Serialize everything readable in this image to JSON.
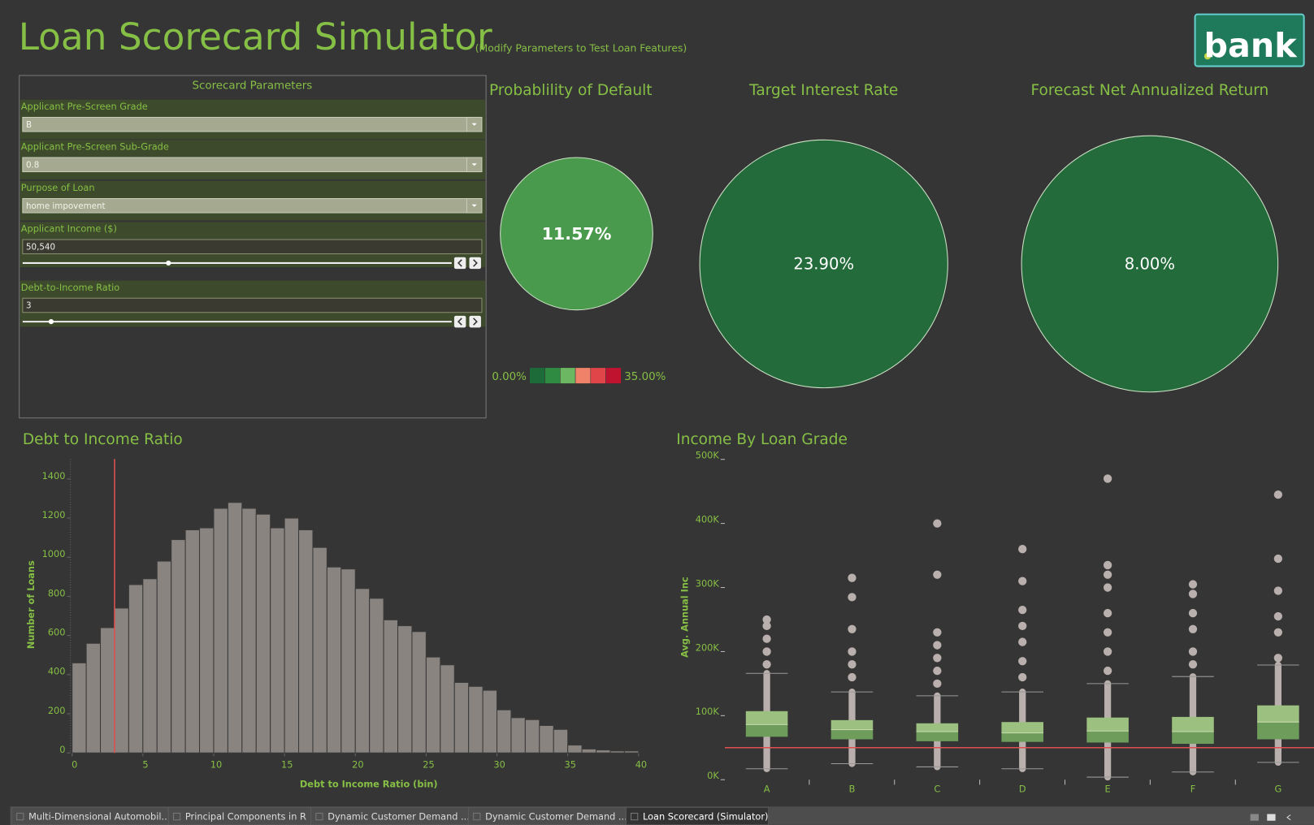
{
  "header": {
    "title": "Loan Scorecard Simulator",
    "subtitle": "(Modify Parameters to Test Loan Features)",
    "logo": "bank"
  },
  "parameters": {
    "title": "Scorecard Parameters",
    "fields": [
      {
        "label": "Applicant Pre-Screen Grade",
        "value": "B",
        "control": "dropdown"
      },
      {
        "label": "Applicant Pre-Screen Sub-Grade",
        "value": "0.8",
        "control": "dropdown"
      },
      {
        "label": "Purpose of Loan",
        "value": "home impovement",
        "control": "dropdown"
      },
      {
        "label": "Applicant Income ($)",
        "value": "50,540",
        "control": "slider"
      },
      {
        "label": "Debt-to-Income Ratio",
        "value": "3",
        "control": "slider"
      }
    ]
  },
  "kpis": [
    {
      "title": "Probablility of Default",
      "value": "11.57%",
      "color": "#4a9a4e"
    },
    {
      "title": "Target Interest Rate",
      "value": "23.90%",
      "color": "#236b3a"
    },
    {
      "title": "Forecast Net Annualized Return",
      "value": "8.00%",
      "color": "#236b3a"
    }
  ],
  "color_legend": {
    "min_label": "0.00%",
    "max_label": "35.00%",
    "colors": [
      "#1e6b3a",
      "#2f8a42",
      "#6cb862",
      "#f0826a",
      "#e0454a",
      "#c0132f"
    ]
  },
  "histogram": {
    "type": "histogram",
    "title": "Debt to Income Ratio",
    "x_label": "Debt to Income Ratio (bin)",
    "y_label": "Number of Loans",
    "color": "#8a8480",
    "bins": [
      0,
      1,
      2,
      3,
      4,
      5,
      6,
      7,
      8,
      9,
      10,
      11,
      12,
      13,
      14,
      15,
      16,
      17,
      18,
      19,
      20,
      21,
      22,
      23,
      24,
      25,
      26,
      27,
      28,
      29,
      30,
      31,
      32,
      33,
      34,
      35,
      36,
      37,
      38,
      39,
      40
    ],
    "counts": [
      460,
      560,
      640,
      740,
      860,
      890,
      980,
      1090,
      1140,
      1150,
      1250,
      1280,
      1250,
      1220,
      1150,
      1200,
      1140,
      1050,
      950,
      940,
      840,
      790,
      680,
      650,
      620,
      490,
      450,
      360,
      340,
      320,
      220,
      180,
      170,
      140,
      120,
      40,
      20,
      15,
      10,
      10
    ],
    "xlim": [
      0,
      40
    ],
    "ylim": [
      0,
      1500
    ],
    "xticks": [
      0,
      5,
      10,
      15,
      20,
      25,
      30,
      35,
      40
    ],
    "yticks": [
      0,
      200,
      400,
      600,
      800,
      1000,
      1200,
      1400
    ],
    "reference_line": 3,
    "reference_color": "#e05050"
  },
  "boxplot": {
    "type": "box",
    "title": "Income By Loan Grade",
    "y_label": "Avg. Annual Inc",
    "categories": [
      "A",
      "B",
      "C",
      "D",
      "E",
      "F",
      "G"
    ],
    "whisker_low": [
      17000,
      25000,
      20000,
      17000,
      4000,
      12000,
      27000
    ],
    "q1": [
      67000,
      63000,
      60000,
      59000,
      58000,
      56000,
      63000
    ],
    "median": [
      86000,
      78000,
      75000,
      73000,
      76000,
      75000,
      90000
    ],
    "q3": [
      107000,
      93000,
      88000,
      90000,
      97000,
      98000,
      116000
    ],
    "whisker_high": [
      166000,
      137000,
      131000,
      137000,
      150000,
      161000,
      179000
    ],
    "outliers": [
      [
        180000,
        200000,
        220000,
        240000,
        250000
      ],
      [
        160000,
        180000,
        200000,
        235000,
        285000,
        315000
      ],
      [
        150000,
        170000,
        190000,
        210000,
        230000,
        320000,
        400000
      ],
      [
        160000,
        185000,
        215000,
        240000,
        265000,
        310000,
        360000
      ],
      [
        170000,
        200000,
        230000,
        260000,
        300000,
        320000,
        335000,
        470000
      ],
      [
        180000,
        200000,
        235000,
        260000,
        290000,
        305000
      ],
      [
        190000,
        230000,
        255000,
        295000,
        345000,
        445000
      ]
    ],
    "ylim": [
      0,
      500000
    ],
    "yticks": [
      {
        "value": 0,
        "label": "0K"
      },
      {
        "value": 100000,
        "label": "100K"
      },
      {
        "value": 200000,
        "label": "200K"
      },
      {
        "value": 300000,
        "label": "300K"
      },
      {
        "value": 400000,
        "label": "400K"
      },
      {
        "value": 500000,
        "label": "500K"
      }
    ],
    "reference_line": 50000,
    "reference_color": "#e05050"
  },
  "tabs": [
    {
      "label": "Multi-Dimensional Automobil...",
      "active": false
    },
    {
      "label": "Principal Components in R",
      "active": false
    },
    {
      "label": "Dynamic Customer Demand ...",
      "active": false
    },
    {
      "label": "Dynamic Customer Demand ...",
      "active": false
    },
    {
      "label": "Loan Scorecard (Simulator)",
      "active": true
    }
  ]
}
